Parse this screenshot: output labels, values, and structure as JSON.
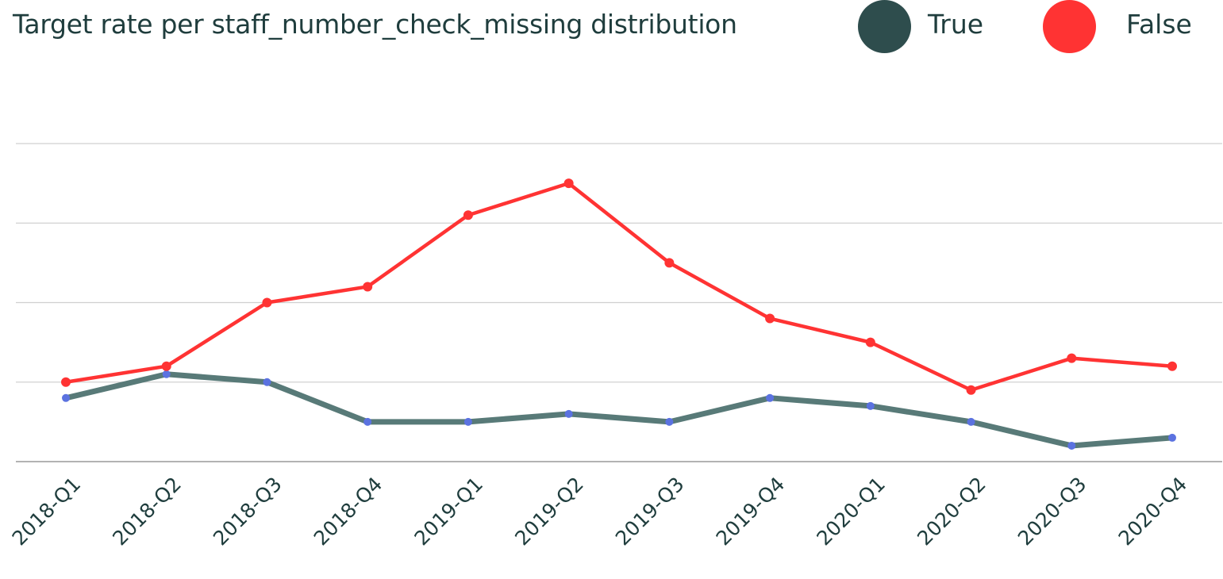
{
  "chart_data": {
    "type": "line",
    "title": "Target rate per staff_number_check_missing distribution",
    "xlabel": "",
    "ylabel": "",
    "categories": [
      "2018-Q1",
      "2018-Q2",
      "2018-Q3",
      "2018-Q4",
      "2019-Q1",
      "2019-Q2",
      "2019-Q3",
      "2019-Q4",
      "2020-Q1",
      "2020-Q2",
      "2020-Q3",
      "2020-Q4"
    ],
    "series": [
      {
        "name": "True",
        "color": "#2e4d4d",
        "line_color": "#587a78",
        "marker_color": "#5b72e0",
        "values": [
          0.8,
          1.1,
          1.0,
          0.5,
          0.5,
          0.6,
          0.5,
          0.8,
          0.7,
          0.5,
          0.2,
          0.3
        ]
      },
      {
        "name": "False",
        "color": "#ff3333",
        "line_color": "#ff3333",
        "marker_color": "#ff3333",
        "values": [
          1.0,
          1.2,
          2.0,
          2.2,
          3.1,
          3.5,
          2.5,
          1.8,
          1.5,
          0.9,
          1.3,
          1.2
        ]
      }
    ],
    "ylim": [
      0,
      4
    ],
    "grid": true,
    "legend_position": "top-right"
  }
}
